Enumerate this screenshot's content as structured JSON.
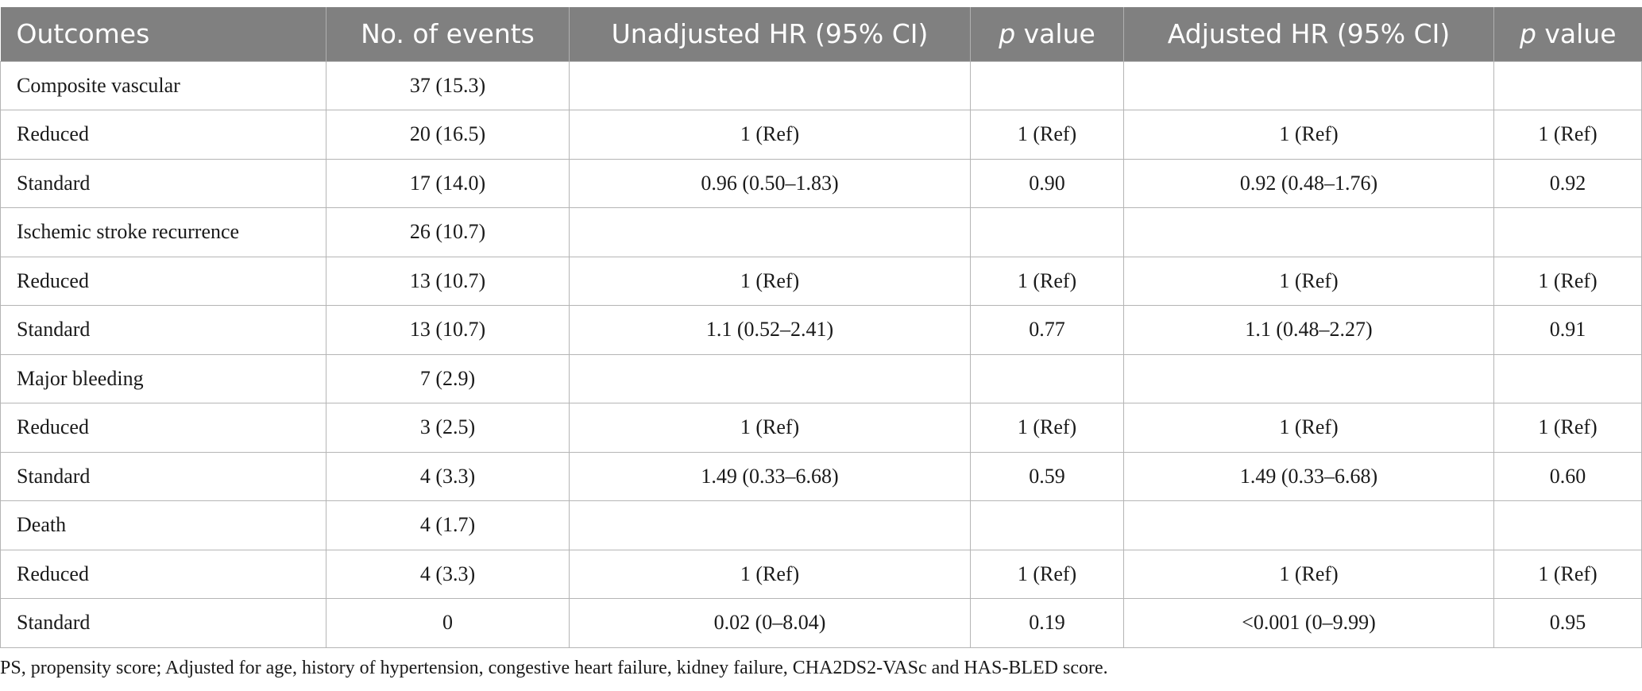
{
  "headers": {
    "outcomes": "Outcomes",
    "events": "No. of events",
    "unadjusted": "Unadjusted HR (95% CI)",
    "p1_italic": "p",
    "p1_rest": " value",
    "adjusted": "Adjusted HR (95% CI)",
    "p2_italic": "p",
    "p2_rest": " value"
  },
  "rows": [
    [
      "Composite vascular",
      "37 (15.3)",
      "",
      "",
      "",
      ""
    ],
    [
      "Reduced",
      "20 (16.5)",
      "1 (Ref)",
      "1 (Ref)",
      "1 (Ref)",
      "1 (Ref)"
    ],
    [
      "Standard",
      "17 (14.0)",
      "0.96 (0.50–1.83)",
      "0.90",
      "0.92 (0.48–1.76)",
      "0.92"
    ],
    [
      "Ischemic stroke recurrence",
      "26 (10.7)",
      "",
      "",
      "",
      ""
    ],
    [
      "Reduced",
      "13 (10.7)",
      "1 (Ref)",
      "1 (Ref)",
      "1 (Ref)",
      "1 (Ref)"
    ],
    [
      "Standard",
      "13 (10.7)",
      "1.1 (0.52–2.41)",
      "0.77",
      "1.1 (0.48–2.27)",
      "0.91"
    ],
    [
      "Major bleeding",
      "7 (2.9)",
      "",
      "",
      "",
      ""
    ],
    [
      "Reduced",
      "3 (2.5)",
      "1 (Ref)",
      "1 (Ref)",
      "1 (Ref)",
      "1 (Ref)"
    ],
    [
      "Standard",
      "4 (3.3)",
      "1.49 (0.33–6.68)",
      "0.59",
      "1.49 (0.33–6.68)",
      "0.60"
    ],
    [
      "Death",
      "4 (1.7)",
      "",
      "",
      "",
      ""
    ],
    [
      "Reduced",
      "4 (3.3)",
      "1 (Ref)",
      "1 (Ref)",
      "1 (Ref)",
      "1 (Ref)"
    ],
    [
      "Standard",
      "0",
      "0.02 (0–8.04)",
      "0.19",
      "<0.001 (0–9.99)",
      "0.95"
    ]
  ],
  "footnote": "PS, propensity score; Adjusted for age, history of hypertension, congestive heart failure, kidney failure, CHA2DS2-VASc and HAS-BLED score.",
  "colors": {
    "header_bg": "#808080",
    "header_text": "#ffffff",
    "grid": "#b5b5b5"
  }
}
